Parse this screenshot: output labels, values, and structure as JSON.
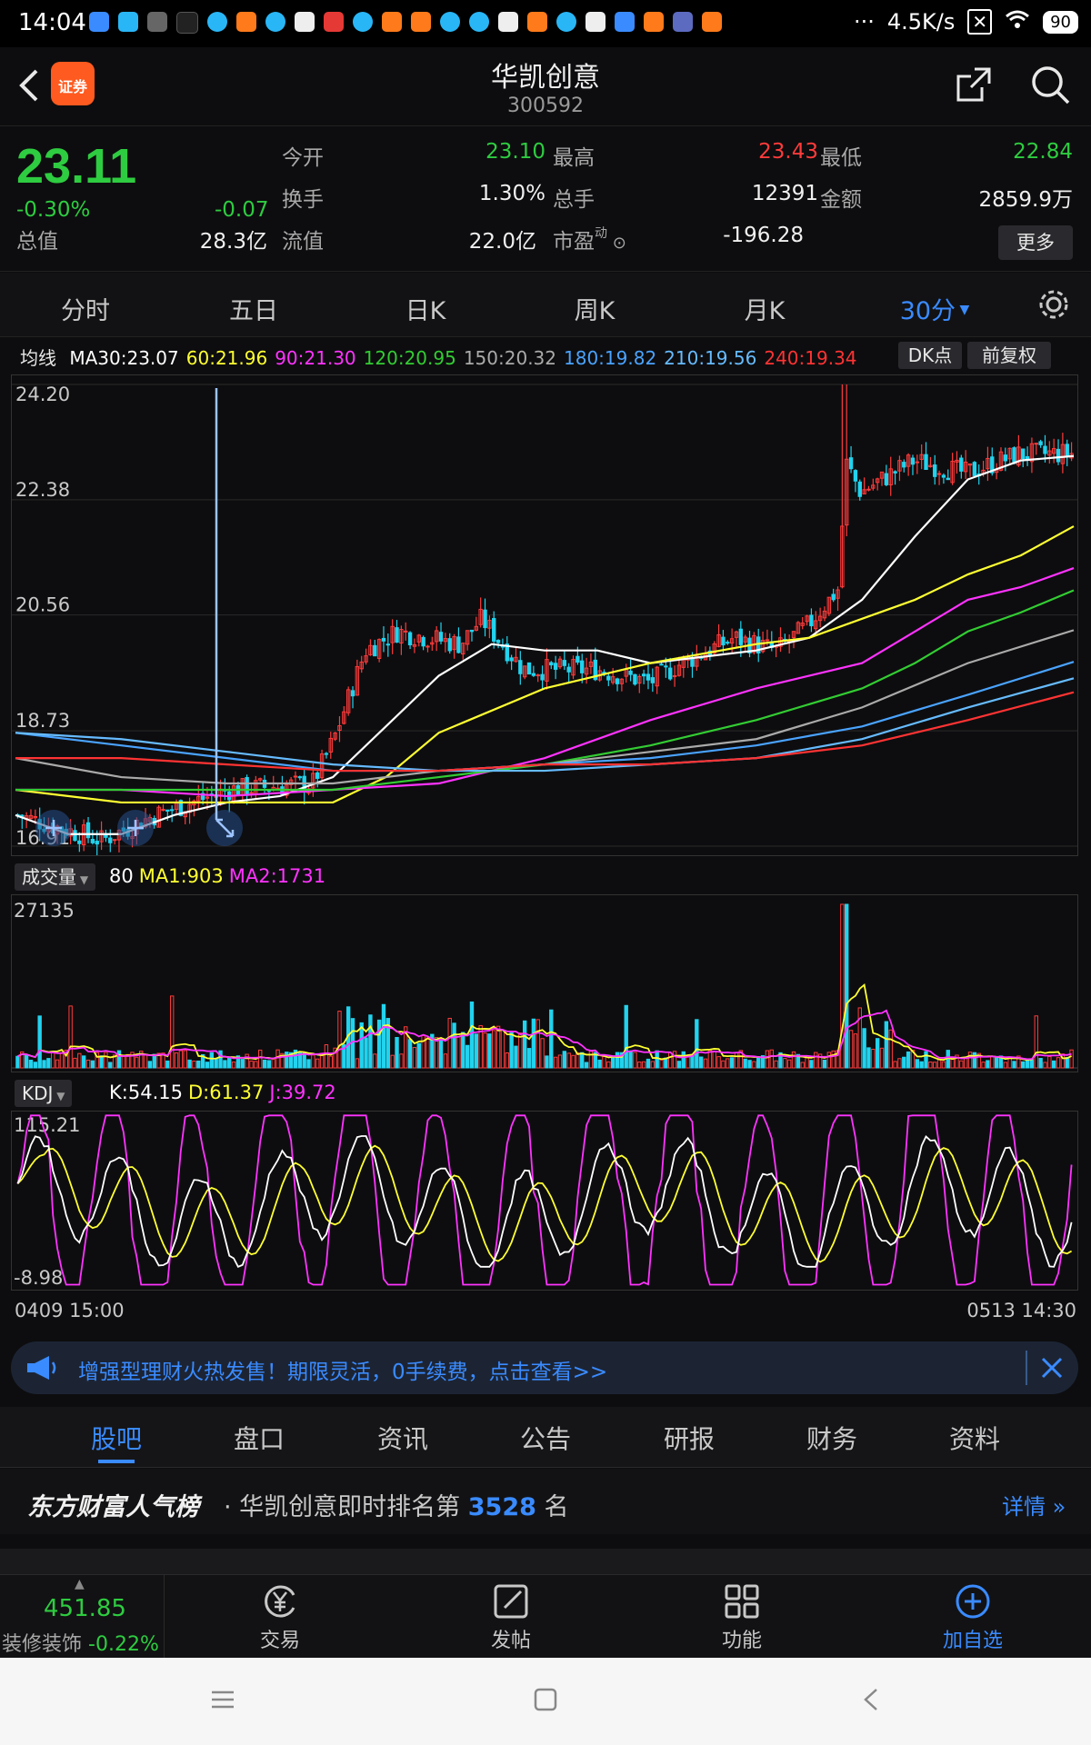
{
  "status": {
    "time": "14:04",
    "net_speed": "4.5K/s",
    "battery": "90",
    "dots": "···"
  },
  "header": {
    "title": "华凯创意",
    "code": "300592",
    "badge": "证券"
  },
  "quote": {
    "price": "23.11",
    "change_pct": "-0.30%",
    "change": "-0.07",
    "items": [
      {
        "label": "今开",
        "value": "23.10",
        "color": "green"
      },
      {
        "label": "最高",
        "value": "23.43",
        "color": "red"
      },
      {
        "label": "最低",
        "value": "22.84",
        "color": "green"
      },
      {
        "label": "换手",
        "value": "1.30%",
        "color": "white"
      },
      {
        "label": "总手",
        "value": "12391",
        "color": "white"
      },
      {
        "label": "金额",
        "value": "2859.9万",
        "color": "white"
      },
      {
        "label": "总值",
        "value": "28.3亿",
        "color": "white"
      },
      {
        "label": "流值",
        "value": "22.0亿",
        "color": "white"
      },
      {
        "label": "市盈",
        "value": "-196.28",
        "color": "white",
        "sup": "动"
      }
    ],
    "more": "更多"
  },
  "period_tabs": [
    "分时",
    "五日",
    "日K",
    "周K",
    "月K",
    "30分"
  ],
  "active_period": "30分",
  "ma_legend": {
    "title": "均线",
    "items": [
      {
        "text": "MA30:23.07",
        "color": "#ffffff"
      },
      {
        "text": "60:21.96",
        "color": "#ffff33"
      },
      {
        "text": "90:21.30",
        "color": "#ff33ff"
      },
      {
        "text": "120:20.95",
        "color": "#33cc33"
      },
      {
        "text": "150:20.32",
        "color": "#aaaaaa"
      },
      {
        "text": "180:19.82",
        "color": "#4aa3ff"
      },
      {
        "text": "210:19.56",
        "color": "#66bbff"
      },
      {
        "text": "240:19.34",
        "color": "#ff3333"
      }
    ],
    "dk_label": "DK点",
    "adj_label": "前复权"
  },
  "chart_data": [
    {
      "type": "candlestick",
      "y_ticks": [
        "24.20",
        "22.38",
        "20.56",
        "18.73",
        "16.91"
      ],
      "ylim": [
        16.91,
        24.2
      ],
      "series": [
        {
          "name": "MA30",
          "color": "#ffffff",
          "x": [
            0,
            0.05,
            0.1,
            0.15,
            0.2,
            0.25,
            0.3,
            0.35,
            0.4,
            0.45,
            0.5,
            0.55,
            0.6,
            0.65,
            0.7,
            0.75,
            0.8,
            0.85,
            0.9,
            0.95,
            1.0
          ],
          "values": [
            17.4,
            17.1,
            17.1,
            17.4,
            17.6,
            17.7,
            18.0,
            18.8,
            19.6,
            20.1,
            20.0,
            20.0,
            19.8,
            19.9,
            20.0,
            20.2,
            20.8,
            21.8,
            22.7,
            23.0,
            23.07
          ]
        },
        {
          "name": "60",
          "color": "#ffff33",
          "x": [
            0,
            0.1,
            0.2,
            0.3,
            0.35,
            0.4,
            0.5,
            0.6,
            0.7,
            0.75,
            0.8,
            0.85,
            0.9,
            0.95,
            1.0
          ],
          "values": [
            17.8,
            17.6,
            17.6,
            17.6,
            18.0,
            18.7,
            19.4,
            19.8,
            20.1,
            20.2,
            20.5,
            20.8,
            21.2,
            21.5,
            21.96
          ]
        },
        {
          "name": "90",
          "color": "#ff33ff",
          "x": [
            0,
            0.1,
            0.2,
            0.3,
            0.4,
            0.5,
            0.6,
            0.7,
            0.8,
            0.85,
            0.9,
            0.95,
            1.0
          ],
          "values": [
            17.8,
            17.8,
            17.7,
            17.8,
            17.9,
            18.3,
            18.9,
            19.4,
            19.8,
            20.3,
            20.8,
            21.0,
            21.3
          ]
        },
        {
          "name": "120",
          "color": "#33cc33",
          "x": [
            0,
            0.1,
            0.2,
            0.3,
            0.4,
            0.5,
            0.6,
            0.7,
            0.8,
            0.85,
            0.9,
            0.95,
            1.0
          ],
          "values": [
            17.8,
            17.8,
            17.8,
            17.8,
            18.0,
            18.2,
            18.5,
            18.9,
            19.4,
            19.8,
            20.3,
            20.6,
            20.95
          ]
        },
        {
          "name": "150",
          "color": "#aaaaaa",
          "x": [
            0,
            0.1,
            0.2,
            0.3,
            0.4,
            0.5,
            0.6,
            0.7,
            0.8,
            0.9,
            1.0
          ],
          "values": [
            18.3,
            18.0,
            17.9,
            17.9,
            18.1,
            18.2,
            18.4,
            18.6,
            19.1,
            19.8,
            20.32
          ]
        },
        {
          "name": "180",
          "color": "#4aa3ff",
          "x": [
            0,
            0.1,
            0.2,
            0.3,
            0.4,
            0.5,
            0.6,
            0.7,
            0.8,
            0.9,
            1.0
          ],
          "values": [
            18.7,
            18.5,
            18.3,
            18.1,
            18.1,
            18.2,
            18.3,
            18.5,
            18.8,
            19.3,
            19.82
          ]
        },
        {
          "name": "210",
          "color": "#66bbff",
          "x": [
            0,
            0.1,
            0.2,
            0.3,
            0.4,
            0.5,
            0.6,
            0.7,
            0.8,
            0.9,
            1.0
          ],
          "values": [
            18.7,
            18.6,
            18.4,
            18.2,
            18.1,
            18.1,
            18.2,
            18.3,
            18.6,
            19.1,
            19.56
          ]
        },
        {
          "name": "240",
          "color": "#ff3333",
          "x": [
            0,
            0.1,
            0.2,
            0.3,
            0.4,
            0.5,
            0.6,
            0.7,
            0.8,
            0.9,
            1.0
          ],
          "values": [
            18.3,
            18.3,
            18.2,
            18.1,
            18.1,
            18.2,
            18.2,
            18.3,
            18.5,
            18.9,
            19.34
          ]
        }
      ]
    },
    {
      "type": "bar",
      "title": "成交量",
      "y_ticks": [
        "27135"
      ],
      "legend": [
        {
          "text": "80",
          "color": "#ffffff"
        },
        {
          "text": "MA1:903",
          "color": "#ffff33"
        },
        {
          "text": "MA2:1731",
          "color": "#ff33ff"
        }
      ]
    },
    {
      "type": "line",
      "title": "KDJ",
      "y_ticks": [
        "115.21",
        "-8.98"
      ],
      "ylim": [
        -8.98,
        115.21
      ],
      "legend": [
        {
          "text": "K:54.15",
          "color": "#ffffff"
        },
        {
          "text": "D:61.37",
          "color": "#ffff33"
        },
        {
          "text": "J:39.72",
          "color": "#ff33ff"
        }
      ],
      "x_labels": [
        "0409 15:00",
        "0513 14:30"
      ]
    }
  ],
  "ad": {
    "text": "增强型理财火热发售！期限灵活，0手续费，点击查看>>"
  },
  "bottom_tabs": [
    "股吧",
    "盘口",
    "资讯",
    "公告",
    "研报",
    "财务",
    "资料"
  ],
  "rank": {
    "brand": "东方财富人气榜",
    "prefix": "· 华凯创意即时排名第",
    "number": "3528",
    "suffix": "名",
    "detail": "详情"
  },
  "nav": {
    "index_value": "451.85",
    "index_name": "装修装饰",
    "index_change": "-0.22%",
    "items": [
      "交易",
      "发帖",
      "功能",
      "加自选"
    ]
  }
}
